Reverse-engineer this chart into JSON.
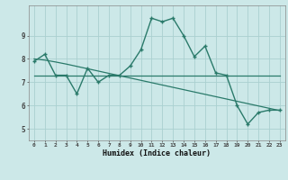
{
  "xlabel": "Humidex (Indice chaleur)",
  "bg_color": "#cce8e8",
  "grid_color": "#aad0d0",
  "line_color": "#2a7a6a",
  "x_ticks": [
    0,
    1,
    2,
    3,
    4,
    5,
    6,
    7,
    8,
    9,
    10,
    11,
    12,
    13,
    14,
    15,
    16,
    17,
    18,
    19,
    20,
    21,
    22,
    23
  ],
  "y_ticks": [
    5,
    6,
    7,
    8,
    9
  ],
  "xlim": [
    -0.5,
    23.5
  ],
  "ylim": [
    4.5,
    10.3
  ],
  "series1_x": [
    0,
    1,
    2,
    3,
    4,
    5,
    6,
    7,
    8,
    9,
    10,
    11,
    12,
    13,
    14,
    15,
    16,
    17,
    18,
    19,
    20,
    21,
    22,
    23
  ],
  "series1_y": [
    7.9,
    8.2,
    7.3,
    7.3,
    6.5,
    7.6,
    7.0,
    7.3,
    7.3,
    7.7,
    8.4,
    9.75,
    9.6,
    9.75,
    9.0,
    8.1,
    8.55,
    7.4,
    7.3,
    6.0,
    5.2,
    5.7,
    5.8,
    5.8
  ],
  "series2_x": [
    0,
    23
  ],
  "series2_y": [
    7.3,
    7.3
  ],
  "series3_x": [
    0,
    1,
    2,
    3,
    4,
    5,
    6,
    7,
    8,
    9,
    10,
    11,
    12,
    13,
    14,
    15,
    16,
    17,
    18,
    19,
    20,
    21,
    22,
    23
  ],
  "series3_y": [
    8.0,
    7.95,
    7.87,
    7.78,
    7.68,
    7.58,
    7.48,
    7.38,
    7.28,
    7.18,
    7.08,
    6.98,
    6.88,
    6.78,
    6.68,
    6.58,
    6.48,
    6.38,
    6.28,
    6.18,
    6.08,
    5.98,
    5.88,
    5.78
  ]
}
